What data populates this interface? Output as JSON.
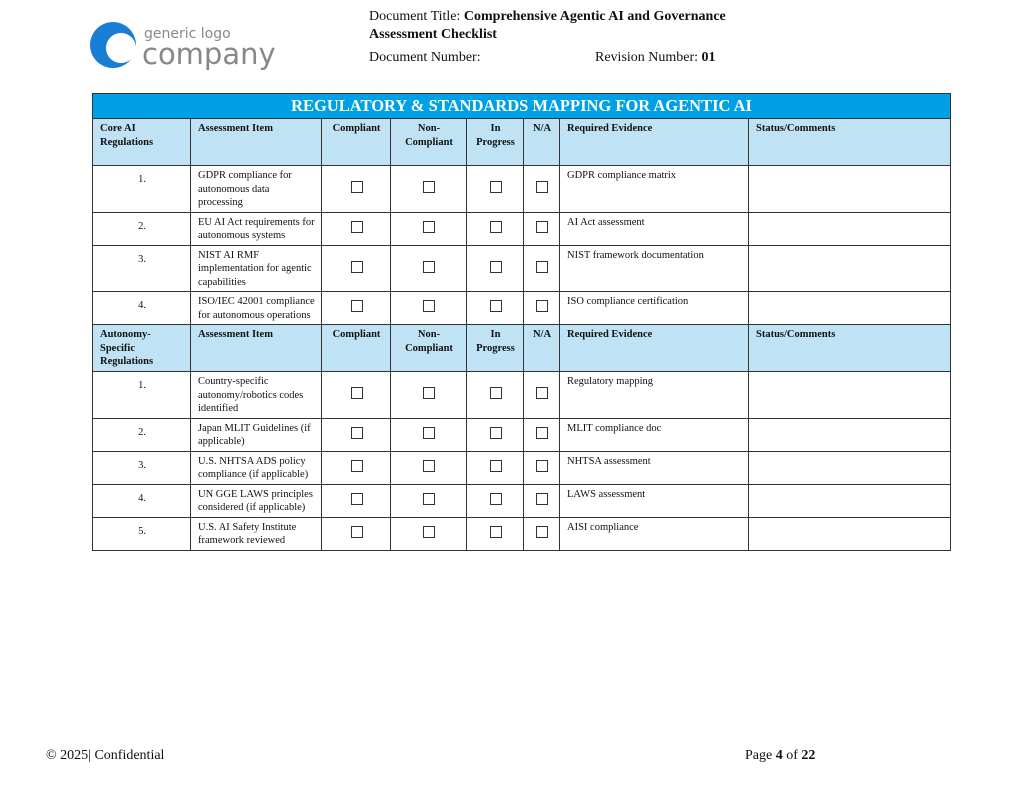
{
  "header": {
    "logo_top": "generic logo",
    "logo_bottom": "company",
    "title_label": "Document Title:",
    "title": "Comprehensive Agentic AI and Governance Assessment Checklist",
    "number_label": "Document Number:",
    "revision_label": "Revision Number:",
    "revision": "01"
  },
  "table": {
    "title": "REGULATORY & STANDARDS MAPPING FOR AGENTIC AI",
    "sections": [
      {
        "header": [
          "Core AI Regulations",
          "Assessment Item",
          "Compliant",
          "Non-Compliant",
          "In Progress",
          "N/A",
          "Required Evidence",
          "Status/Comments"
        ],
        "rows": [
          [
            "1.",
            "GDPR compliance for autonomous data processing",
            "GDPR compliance matrix"
          ],
          [
            "2.",
            "EU AI Act requirements for autonomous systems",
            "AI Act assessment"
          ],
          [
            "3.",
            "NIST AI RMF implementation for agentic capabilities",
            "NIST framework documentation"
          ],
          [
            "4.",
            "ISO/IEC 42001 compliance for autonomous operations",
            "ISO compliance certification"
          ]
        ]
      },
      {
        "header": [
          "Autonomy-Specific Regulations",
          "Assessment Item",
          "Compliant",
          "Non-Compliant",
          "In Progress",
          "N/A",
          "Required Evidence",
          "Status/Comments"
        ],
        "rows": [
          [
            "1.",
            "Country-specific autonomy/robotics codes identified",
            "Regulatory mapping"
          ],
          [
            "2.",
            "Japan MLIT Guidelines (if applicable)",
            "MLIT compliance doc"
          ],
          [
            "3.",
            "U.S. NHTSA ADS policy compliance (if applicable)",
            "NHTSA assessment"
          ],
          [
            "4.",
            "UN GGE LAWS principles considered (if applicable)",
            "LAWS assessment"
          ],
          [
            "5.",
            "U.S. AI Safety Institute framework reviewed",
            "AISI compliance"
          ]
        ]
      }
    ]
  },
  "footer": {
    "copyright": "© 2025",
    "confidential": "Confidential",
    "page_label": "Page",
    "page": "4",
    "of": "of",
    "total": "22"
  }
}
